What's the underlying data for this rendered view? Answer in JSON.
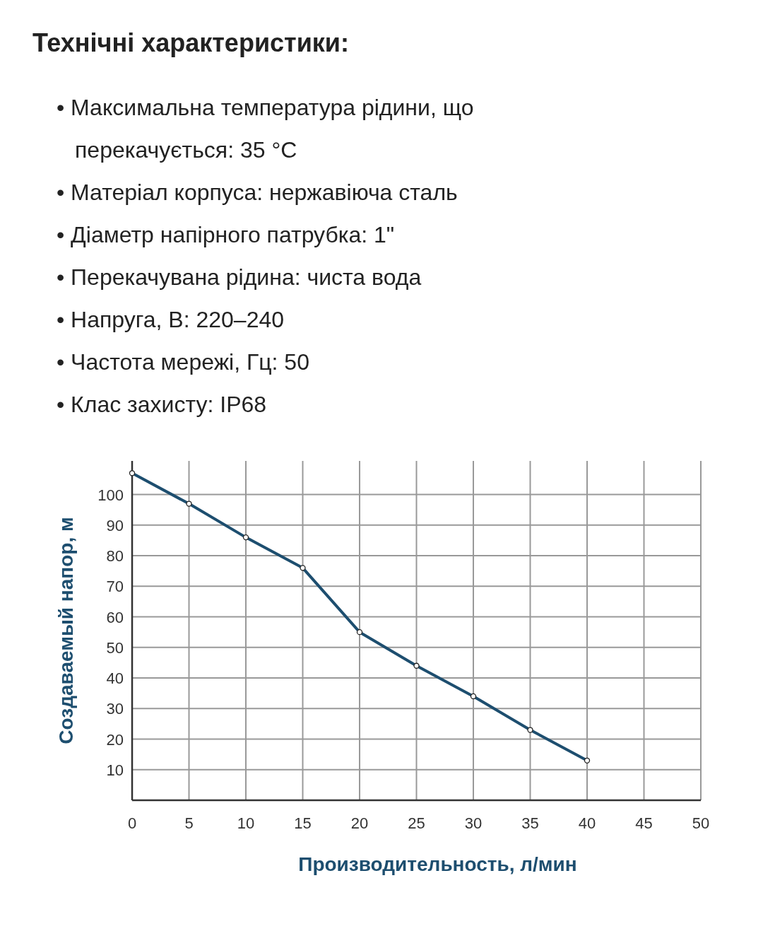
{
  "chart_data": {
    "type": "line",
    "title": "Технічні характеристики:",
    "annotations": [
      "• Максимальна температура рідини, що перекачується: 35 °C",
      "• Матеріал корпуса: нержавіюча сталь",
      "• Діаметр напірного патрубка: 1\"",
      "• Перекачувана рідина: чиста вода",
      "• Напруга, В: 220–240",
      "• Частота мережі, Гц: 50",
      "• Клас захисту: IP68"
    ],
    "xlabel": "Производительность, л/мин",
    "ylabel": "Создаваемый напор, м",
    "x": [
      0,
      5,
      10,
      15,
      20,
      25,
      30,
      35,
      40
    ],
    "series": [
      {
        "color": "#1d4e6f",
        "values": [
          107,
          97,
          86,
          76,
          55,
          44,
          34,
          23,
          13
        ]
      }
    ],
    "xlim": [
      0,
      50
    ],
    "xticks": [
      0,
      5,
      10,
      15,
      20,
      25,
      30,
      35,
      40,
      45,
      50
    ],
    "ylim": [
      0,
      111
    ],
    "yticks": [
      10,
      20,
      30,
      40,
      50,
      60,
      70,
      80,
      90,
      100
    ],
    "grid": true,
    "marker": "circle",
    "line_style": "solid"
  }
}
